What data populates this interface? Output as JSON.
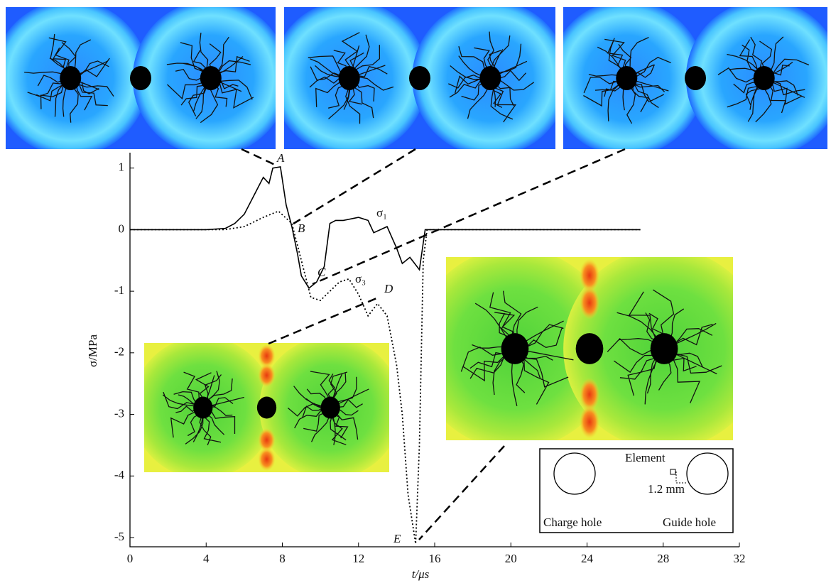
{
  "chart_data": {
    "type": "line",
    "xlabel": "t/μs",
    "ylabel": "σ/MPa",
    "xlim": [
      0,
      32
    ],
    "ylim": [
      -5.15,
      1.25
    ],
    "xticks": [
      0,
      4,
      8,
      12,
      16,
      20,
      24,
      28,
      32
    ],
    "yticks": [
      -5,
      -4,
      -3,
      -2,
      -1,
      0,
      1
    ],
    "series": [
      {
        "name": "σ₁",
        "color": "#000000",
        "dash": "solid",
        "x": [
          0,
          4,
          5,
          5.5,
          6,
          6.5,
          7,
          7.3,
          7.5,
          7.9,
          8.2,
          8.5,
          8.8,
          9,
          9.4,
          9.8,
          10.2,
          10.5,
          10.8,
          11.2,
          12,
          12.5,
          12.8,
          13.5,
          14,
          14.3,
          14.7,
          15.2,
          15.5,
          26.8
        ],
        "values": [
          0,
          0,
          0.02,
          0.1,
          0.25,
          0.55,
          0.85,
          0.75,
          1.0,
          1.02,
          0.4,
          0.05,
          -0.4,
          -0.75,
          -0.95,
          -0.85,
          -0.6,
          0.1,
          0.15,
          0.15,
          0.2,
          0.15,
          -0.05,
          0.05,
          -0.3,
          -0.55,
          -0.45,
          -0.65,
          0,
          0
        ]
      },
      {
        "name": "σ₃",
        "color": "#000000",
        "dash": "dotted",
        "x": [
          0,
          4,
          5,
          6,
          7,
          7.8,
          8.5,
          9,
          9.5,
          10,
          10.5,
          11,
          11.5,
          12,
          12.5,
          13,
          13.5,
          14,
          14.3,
          14.6,
          15,
          15.2,
          15.4,
          15.6,
          26.8
        ],
        "values": [
          0,
          0,
          0,
          0.05,
          0.2,
          0.3,
          0.1,
          -0.5,
          -1.1,
          -1.15,
          -1.0,
          -0.85,
          -0.8,
          -1.05,
          -1.4,
          -1.2,
          -1.4,
          -2.2,
          -3.0,
          -4.3,
          -5.1,
          -3.5,
          -0.5,
          0,
          0
        ]
      }
    ],
    "annotations": [
      "A",
      "B",
      "C",
      "D",
      "E"
    ],
    "inset_legend": {
      "element": "Element",
      "distance": "1.2 mm",
      "charge_hole": "Charge hole",
      "guide_hole": "Guide hole"
    }
  }
}
